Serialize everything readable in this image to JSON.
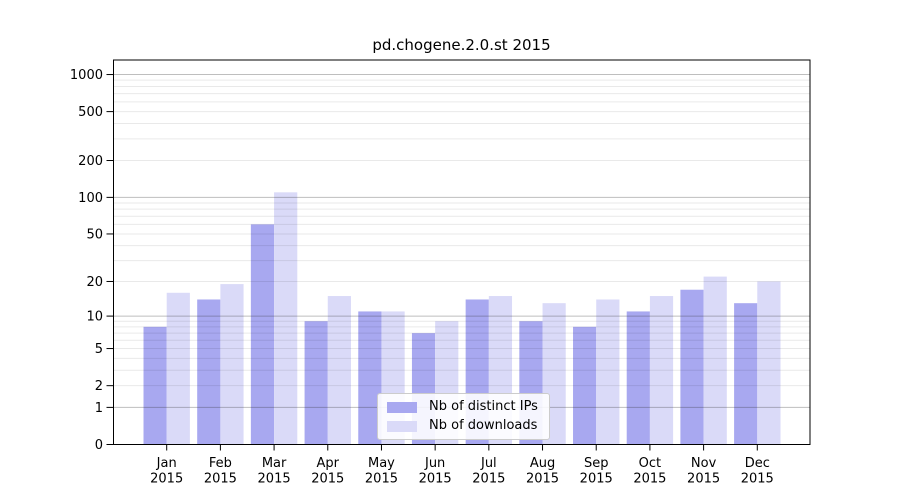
{
  "title": "pd.chogene.2.0.st 2015",
  "chart_data": {
    "type": "bar",
    "title": "pd.chogene.2.0.st 2015",
    "months": [
      "Jan",
      "Feb",
      "Mar",
      "Apr",
      "May",
      "Jun",
      "Jul",
      "Aug",
      "Sep",
      "Oct",
      "Nov",
      "Dec"
    ],
    "year": "2015",
    "categories": [
      "Jan 2015",
      "Feb 2015",
      "Mar 2015",
      "Apr 2015",
      "May 2015",
      "Jun 2015",
      "Jul 2015",
      "Aug 2015",
      "Sep 2015",
      "Oct 2015",
      "Nov 2015",
      "Dec 2015"
    ],
    "series": [
      {
        "name": "Nb of distinct IPs",
        "color": "#a8a8f0",
        "values": [
          8,
          14,
          60,
          9,
          11,
          7,
          14,
          9,
          8,
          11,
          17,
          13
        ]
      },
      {
        "name": "Nb of downloads",
        "color": "#dadaf8",
        "values": [
          16,
          19,
          110,
          15,
          11,
          9,
          15,
          13,
          14,
          15,
          22,
          20
        ]
      }
    ],
    "xlabel": "",
    "ylabel": "",
    "yscale": "log1p",
    "y_ticks": [
      0,
      1,
      2,
      5,
      10,
      20,
      50,
      100,
      200,
      500,
      1000
    ],
    "ylim": [
      0,
      1335
    ],
    "grid": "horizontal, minor and major, drawn over bars",
    "legend_position": "bottom-center"
  }
}
